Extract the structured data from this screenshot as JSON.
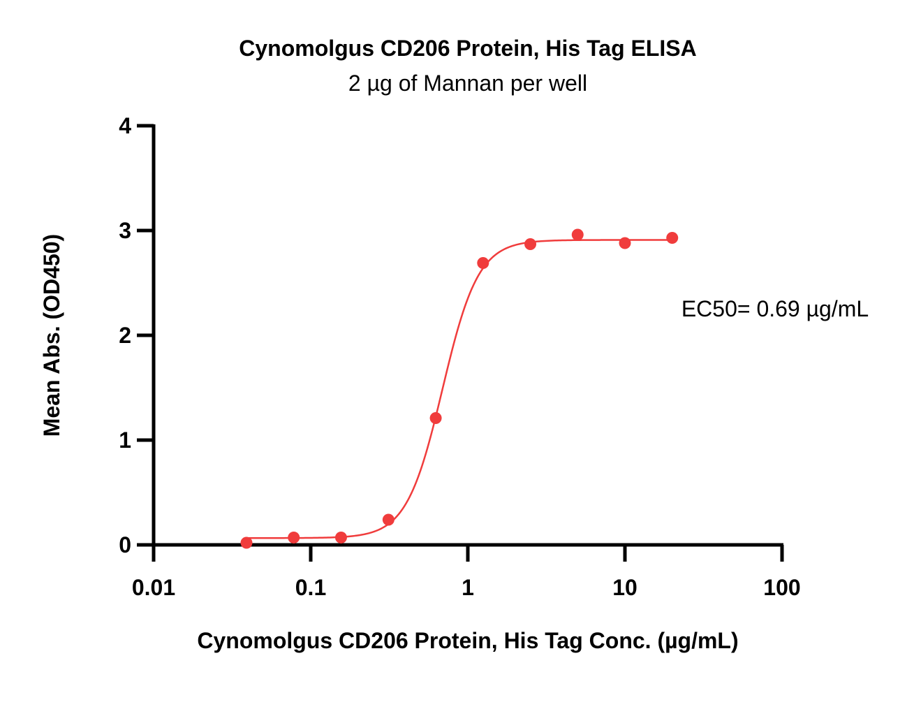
{
  "chart_data": {
    "type": "scatter",
    "title": "Cynomolgus CD206 Protein, His Tag ELISA",
    "subtitle": "2 µg of Mannan per well",
    "xlabel": "Cynomolgus CD206 Protein, His Tag Conc. (µg/mL)",
    "ylabel": "Mean Abs. (OD450)",
    "x_scale": "log",
    "xlim": [
      0.01,
      100
    ],
    "ylim": [
      0,
      4
    ],
    "x_ticks": [
      {
        "value": 0.01,
        "label": "0.01"
      },
      {
        "value": 0.1,
        "label": "0.1"
      },
      {
        "value": 1,
        "label": "1"
      },
      {
        "value": 10,
        "label": "10"
      },
      {
        "value": 100,
        "label": "100"
      }
    ],
    "y_ticks": [
      {
        "value": 0,
        "label": "0"
      },
      {
        "value": 1,
        "label": "1"
      },
      {
        "value": 2,
        "label": "2"
      },
      {
        "value": 3,
        "label": "3"
      },
      {
        "value": 4,
        "label": "4"
      }
    ],
    "series": [
      {
        "color": "#f03c3c",
        "points": [
          {
            "x": 0.039,
            "y": 0.02
          },
          {
            "x": 0.078,
            "y": 0.07
          },
          {
            "x": 0.156,
            "y": 0.07
          },
          {
            "x": 0.3125,
            "y": 0.24
          },
          {
            "x": 0.625,
            "y": 1.21
          },
          {
            "x": 1.25,
            "y": 2.69
          },
          {
            "x": 2.5,
            "y": 2.87
          },
          {
            "x": 5,
            "y": 2.96
          },
          {
            "x": 10,
            "y": 2.88
          },
          {
            "x": 20,
            "y": 2.93
          }
        ],
        "fit": {
          "bottom": 0.065,
          "top": 2.91,
          "ec50": 0.69,
          "hill": 3.8,
          "x_range": [
            0.039,
            20
          ]
        }
      }
    ],
    "annotation": "EC50= 0.69 µg/mL",
    "grid": false,
    "legend": "none"
  }
}
